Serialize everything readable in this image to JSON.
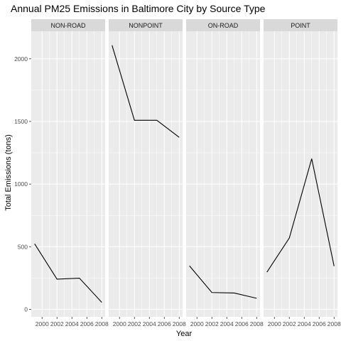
{
  "chart_data": {
    "type": "line",
    "title": "Annual PM25 Emissions in Baltimore City by Source Type",
    "xlabel": "Year",
    "ylabel": "Total Emissions (tons)",
    "x": [
      1999,
      2002,
      2005,
      2008
    ],
    "x_ticks": [
      2000,
      2002,
      2004,
      2006,
      2008
    ],
    "x_tick_labels": [
      "2000",
      "2002",
      "2004",
      "2006",
      "2008"
    ],
    "xlim": [
      1998.55,
      2008.45
    ],
    "ylim": [
      -60,
      2220
    ],
    "y_ticks": [
      0,
      500,
      1000,
      1500,
      2000
    ],
    "y_tick_labels": [
      "0",
      "500",
      "1000",
      "1500",
      "2000"
    ],
    "grid": true,
    "line_color": "#000000",
    "panel_bg": "#ebebeb",
    "strip_bg": "#d9d9d9",
    "facets": [
      {
        "name": "NON-ROAD",
        "values": [
          522.94,
          240.85,
          248.93,
          55.82
        ]
      },
      {
        "name": "NONPOINT",
        "values": [
          2107.63,
          1509.5,
          1509.5,
          1373.21
        ]
      },
      {
        "name": "ON-ROAD",
        "values": [
          346.82,
          134.31,
          130.43,
          88.28
        ]
      },
      {
        "name": "POINT",
        "values": [
          296.8,
          569.26,
          1202.49,
          344.98
        ]
      }
    ]
  }
}
